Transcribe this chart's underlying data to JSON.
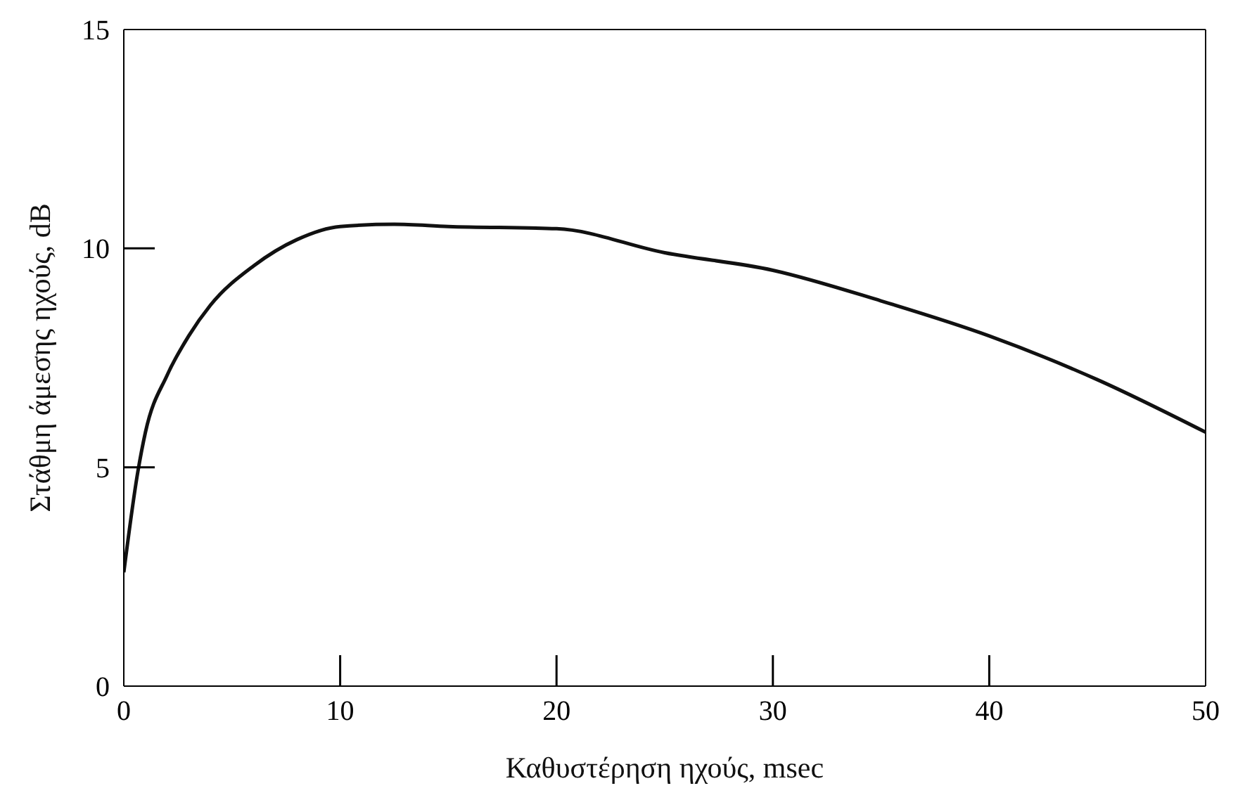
{
  "chart_data": {
    "type": "line",
    "xlabel": "Καθυστέρηση ηχούς, msec",
    "ylabel": "Στάθμη άμεσης ηχούς, dB",
    "x": [
      0,
      0.65,
      1,
      2,
      3,
      4,
      6,
      8,
      10,
      12.5,
      15,
      20,
      25,
      30,
      35,
      40,
      45,
      50
    ],
    "series": [
      {
        "color": "#111111",
        "values": [
          2.6,
          4.9,
          5.8,
          7.1,
          8.0,
          8.7,
          9.6,
          10.2,
          10.5,
          10.55,
          10.5,
          10.45,
          9.9,
          9.5,
          8.8,
          8.0,
          7.0,
          5.8
        ]
      }
    ],
    "xlim": [
      0,
      50
    ],
    "xticks": [
      0,
      10,
      20,
      30,
      40,
      50
    ],
    "ylim": [
      0,
      15
    ],
    "yticks": [
      0,
      5,
      10,
      15
    ],
    "grid": false,
    "legend": false,
    "marker": "none",
    "line_style": "solid"
  }
}
